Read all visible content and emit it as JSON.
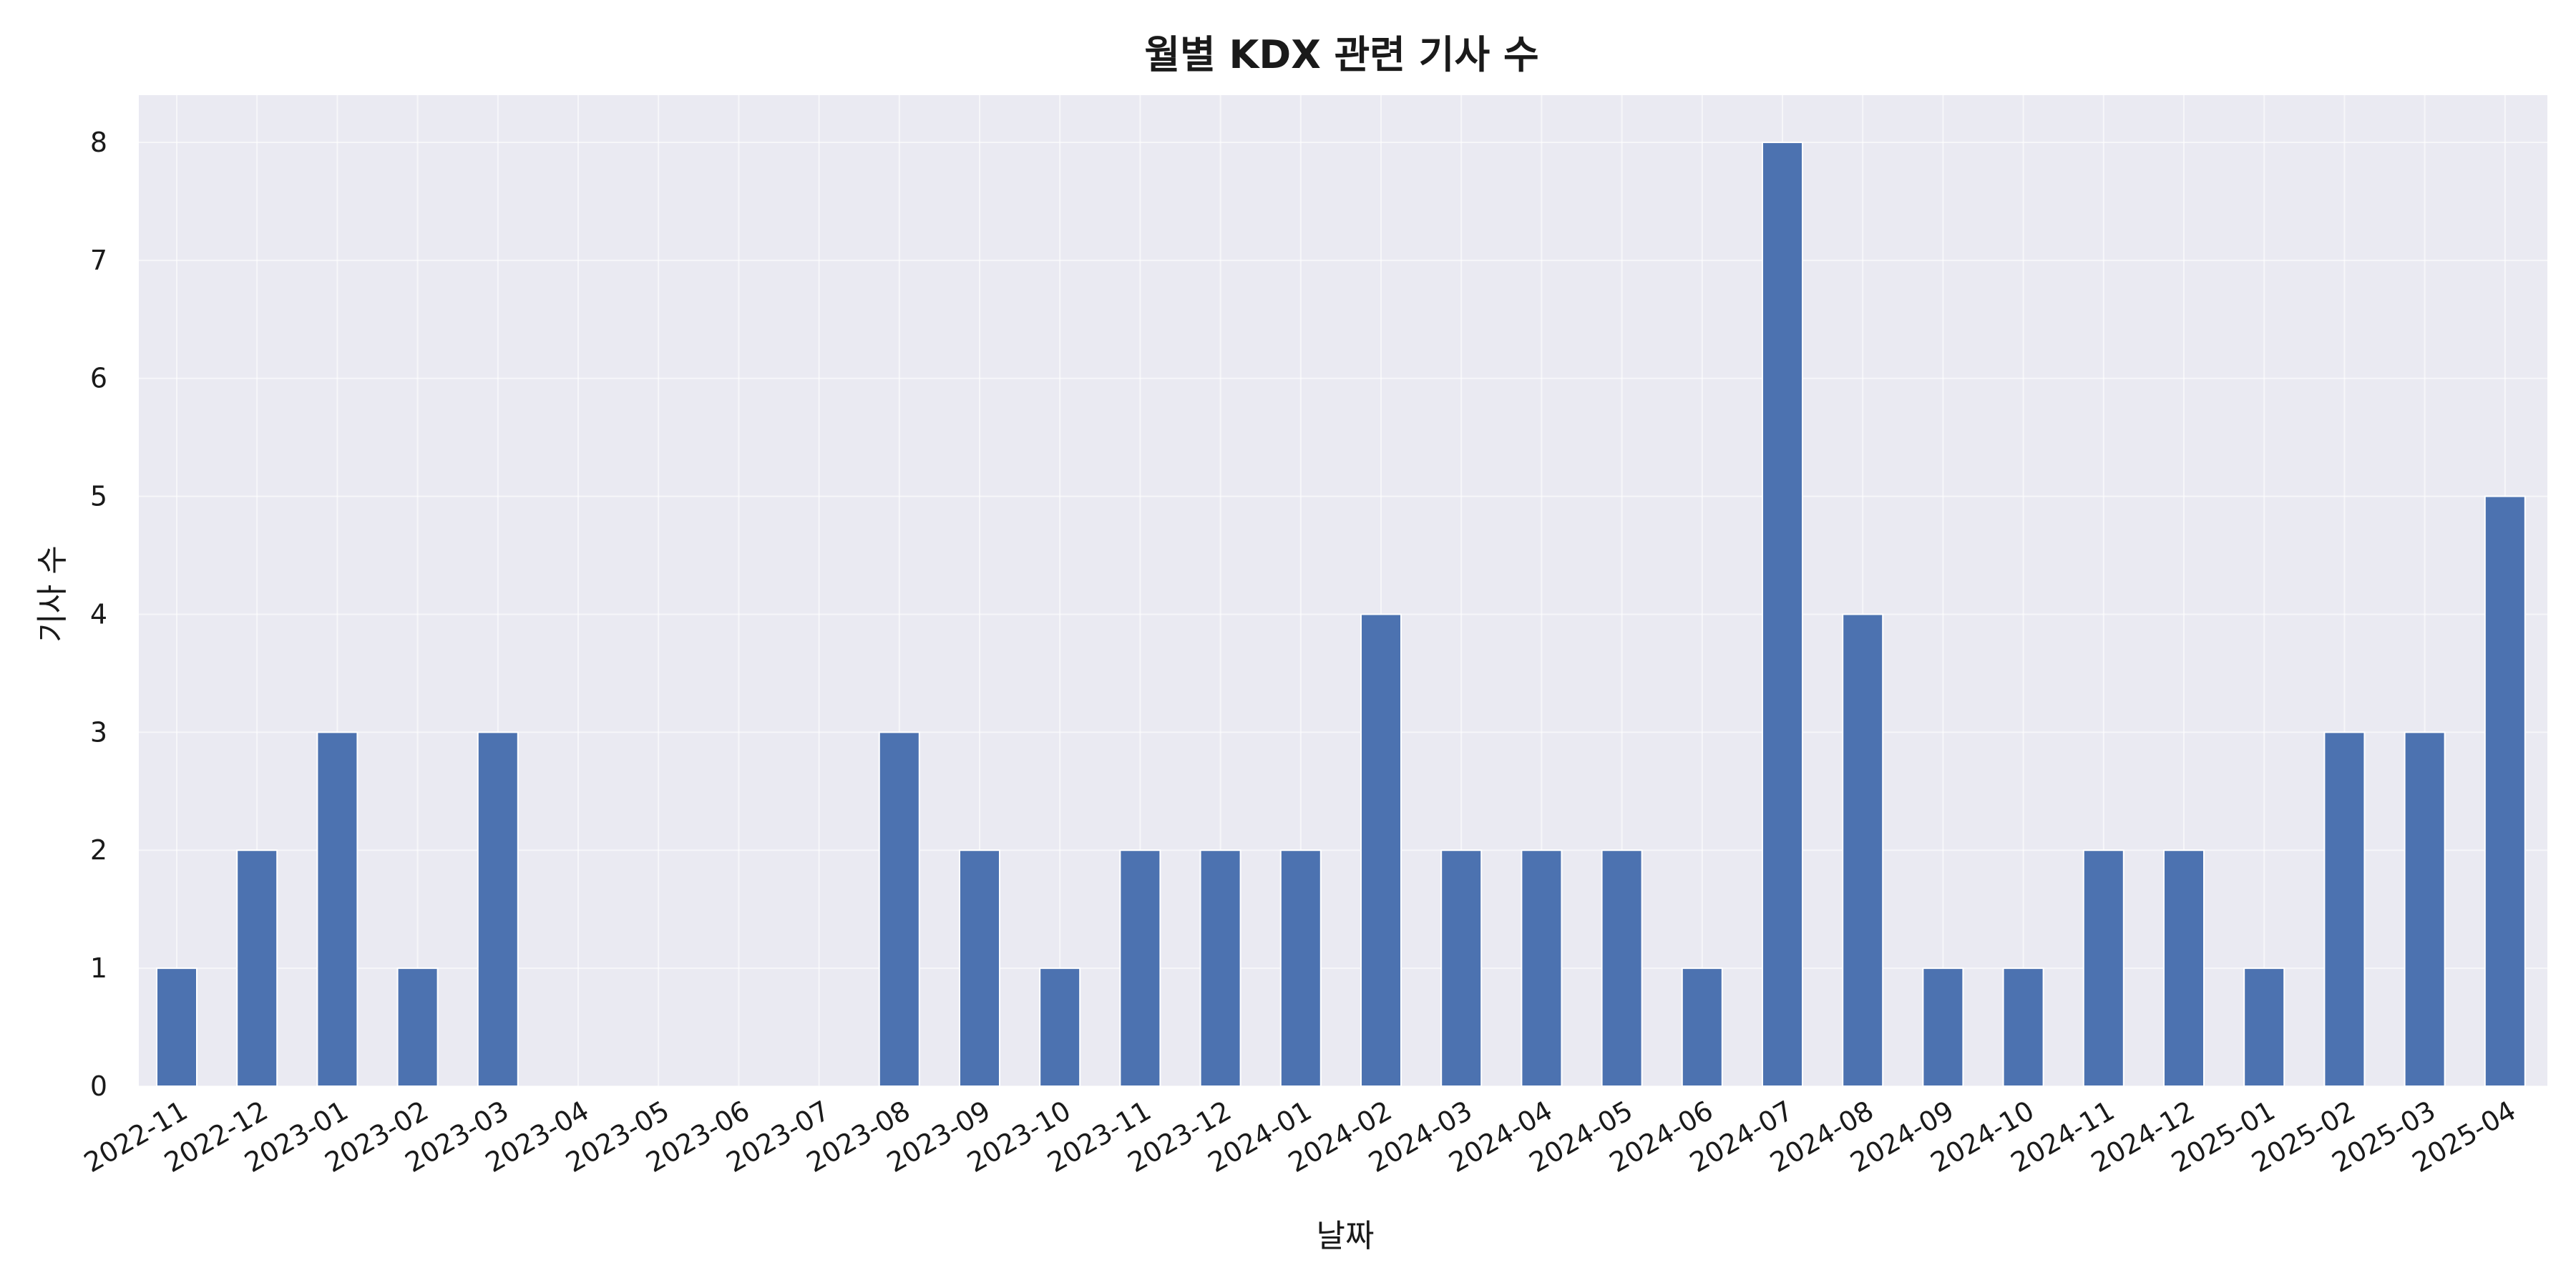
{
  "chart_data": {
    "type": "bar",
    "title": "월별 KDX 관련 기사 수",
    "xlabel": "날짜",
    "ylabel": "기사 수",
    "categories": [
      "2022-11",
      "2022-12",
      "2023-01",
      "2023-02",
      "2023-03",
      "2023-04",
      "2023-05",
      "2023-06",
      "2023-07",
      "2023-08",
      "2023-09",
      "2023-10",
      "2023-11",
      "2023-12",
      "2024-01",
      "2024-02",
      "2024-03",
      "2024-04",
      "2024-05",
      "2024-06",
      "2024-07",
      "2024-08",
      "2024-09",
      "2024-10",
      "2024-11",
      "2024-12",
      "2025-01",
      "2025-02",
      "2025-03",
      "2025-04"
    ],
    "values": [
      1,
      2,
      3,
      1,
      3,
      0,
      0,
      0,
      0,
      3,
      2,
      1,
      2,
      2,
      2,
      4,
      2,
      2,
      2,
      1,
      8,
      4,
      1,
      1,
      2,
      2,
      1,
      3,
      3,
      5
    ],
    "ylim": [
      0,
      8.4
    ],
    "yticks": [
      0,
      1,
      2,
      3,
      4,
      5,
      6,
      7,
      8
    ],
    "grid": true,
    "legend": "none",
    "colors": {
      "bar": "#4c72b0",
      "plot_bg": "#eaeaf2",
      "grid": "#ffffff"
    }
  }
}
